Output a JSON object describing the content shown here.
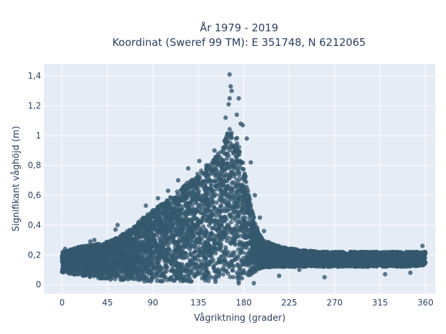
{
  "chart_data": {
    "type": "scatter",
    "title_lines": [
      "År 1979 - 2019",
      "Koordinat (Sweref 99 TM): E 351748, N 6212065"
    ],
    "xlabel": "Vågriktning (grader)",
    "ylabel": "Signifikant våghöjd (m)",
    "xlim": [
      -18,
      370
    ],
    "ylim": [
      -0.06,
      1.48
    ],
    "xticks": [
      0,
      45,
      90,
      135,
      180,
      225,
      270,
      315,
      360
    ],
    "xtick_labels": [
      "0",
      "45",
      "90",
      "135",
      "180",
      "225",
      "270",
      "315",
      "360"
    ],
    "yticks": [
      0,
      0.2,
      0.4,
      0.6,
      0.8,
      1.0,
      1.2,
      1.4
    ],
    "ytick_labels": [
      "0",
      "0,2",
      "0,4",
      "0,6",
      "0,8",
      "1",
      "1,2",
      "1,4"
    ],
    "grid": true,
    "marker_color": "#34586e",
    "envelope": {
      "direction": [
        0,
        10,
        20,
        30,
        40,
        50,
        60,
        70,
        80,
        90,
        100,
        110,
        120,
        130,
        140,
        150,
        160,
        165,
        170,
        175,
        180,
        185,
        190,
        195,
        200,
        210,
        220,
        240,
        260,
        280,
        300,
        320,
        340,
        360
      ],
      "upper_height": [
        0.22,
        0.24,
        0.26,
        0.27,
        0.28,
        0.3,
        0.34,
        0.38,
        0.45,
        0.5,
        0.55,
        0.6,
        0.66,
        0.72,
        0.78,
        0.85,
        0.95,
        1.05,
        1.05,
        0.95,
        0.8,
        0.6,
        0.45,
        0.34,
        0.3,
        0.27,
        0.25,
        0.23,
        0.22,
        0.22,
        0.22,
        0.22,
        0.22,
        0.22
      ],
      "lower_height": [
        0.08,
        0.07,
        0.06,
        0.05,
        0.04,
        0.03,
        0.03,
        0.03,
        0.02,
        0.02,
        0.02,
        0.02,
        0.02,
        0.02,
        0.02,
        0.02,
        0.02,
        0.02,
        0.02,
        0.02,
        0.03,
        0.05,
        0.08,
        0.1,
        0.11,
        0.12,
        0.12,
        0.12,
        0.12,
        0.12,
        0.12,
        0.12,
        0.12,
        0.13
      ]
    },
    "outliers": [
      {
        "x": 166,
        "y": 1.41
      },
      {
        "x": 167,
        "y": 1.33
      },
      {
        "x": 168,
        "y": 1.3
      },
      {
        "x": 166,
        "y": 1.25
      },
      {
        "x": 165,
        "y": 1.21
      },
      {
        "x": 175,
        "y": 1.25
      },
      {
        "x": 173,
        "y": 1.14
      },
      {
        "x": 177,
        "y": 1.08
      },
      {
        "x": 179,
        "y": 1.07
      },
      {
        "x": 162,
        "y": 1.12
      },
      {
        "x": 95,
        "y": 0.58
      },
      {
        "x": 115,
        "y": 0.7
      },
      {
        "x": 125,
        "y": 0.78
      },
      {
        "x": 136,
        "y": 0.83
      },
      {
        "x": 151,
        "y": 0.9
      },
      {
        "x": 105,
        "y": 0.63
      },
      {
        "x": 55,
        "y": 0.4
      },
      {
        "x": 53,
        "y": 0.37
      },
      {
        "x": 83,
        "y": 0.53
      },
      {
        "x": 183,
        "y": 0.98
      },
      {
        "x": 187,
        "y": 0.82
      },
      {
        "x": 191,
        "y": 0.6
      },
      {
        "x": 196,
        "y": 0.45
      },
      {
        "x": 200,
        "y": 0.36
      },
      {
        "x": 152,
        "y": 0.02
      },
      {
        "x": 175,
        "y": 0.01
      },
      {
        "x": 190,
        "y": 0.01
      },
      {
        "x": 215,
        "y": 0.06
      },
      {
        "x": 235,
        "y": 0.1
      },
      {
        "x": 260,
        "y": 0.05
      },
      {
        "x": 320,
        "y": 0.07
      },
      {
        "x": 345,
        "y": 0.08
      },
      {
        "x": 357,
        "y": 0.26
      },
      {
        "x": 28,
        "y": 0.29
      },
      {
        "x": 32,
        "y": 0.3
      },
      {
        "x": 3,
        "y": 0.24
      }
    ]
  }
}
